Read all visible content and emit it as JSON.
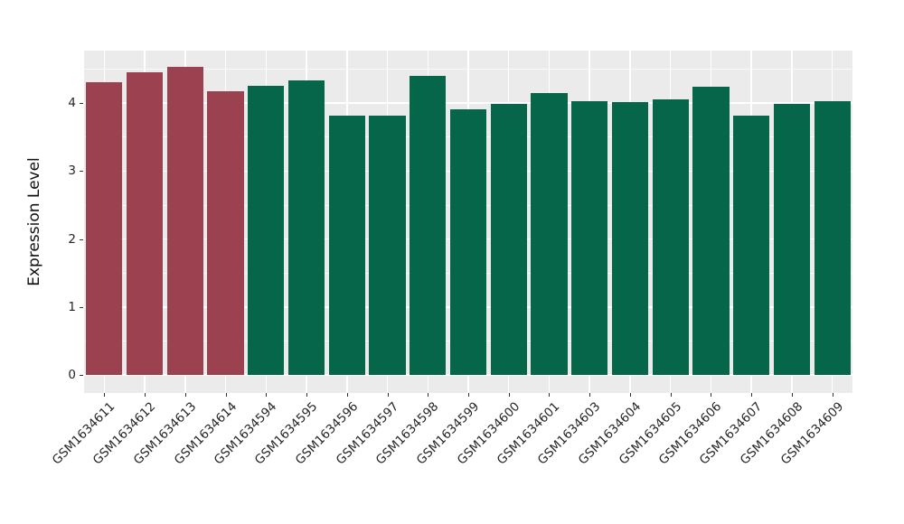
{
  "figure": {
    "background": "#FFFFFF"
  },
  "chart_data": {
    "type": "bar",
    "title": "",
    "xlabel": "",
    "ylabel": "Expression Level",
    "categories": [
      "GSM1634611",
      "GSM1634612",
      "GSM1634613",
      "GSM1634614",
      "GSM1634594",
      "GSM1634595",
      "GSM1634596",
      "GSM1634597",
      "GSM1634598",
      "GSM1634599",
      "GSM1634600",
      "GSM1634601",
      "GSM1634603",
      "GSM1634604",
      "GSM1634605",
      "GSM1634606",
      "GSM1634607",
      "GSM1634608",
      "GSM1634609"
    ],
    "values": [
      4.31,
      4.45,
      4.54,
      4.18,
      4.25,
      4.34,
      3.82,
      3.82,
      4.4,
      3.91,
      3.99,
      4.15,
      4.03,
      4.01,
      4.06,
      4.24,
      3.82,
      3.99,
      4.03
    ],
    "groups": [
      "highlight",
      "highlight",
      "highlight",
      "highlight",
      "normal",
      "normal",
      "normal",
      "normal",
      "normal",
      "normal",
      "normal",
      "normal",
      "normal",
      "normal",
      "normal",
      "normal",
      "normal",
      "normal",
      "normal"
    ],
    "group_colors": {
      "highlight": "#9B4150",
      "normal": "#066649"
    },
    "yticks": [
      0,
      1,
      2,
      3,
      4
    ],
    "ytick_labels": [
      "0",
      "1",
      "2",
      "3",
      "4"
    ],
    "minor_yticks": [
      0.5,
      1.5,
      2.5,
      3.5,
      4.5
    ],
    "ylim": [
      0,
      4.77
    ],
    "grid": "major+minor, white on gray panel",
    "legend_position": "none",
    "panel_background": "#EBEBEB",
    "gridline_color": "#FFFFFF",
    "x_tick_rotation": 45
  }
}
